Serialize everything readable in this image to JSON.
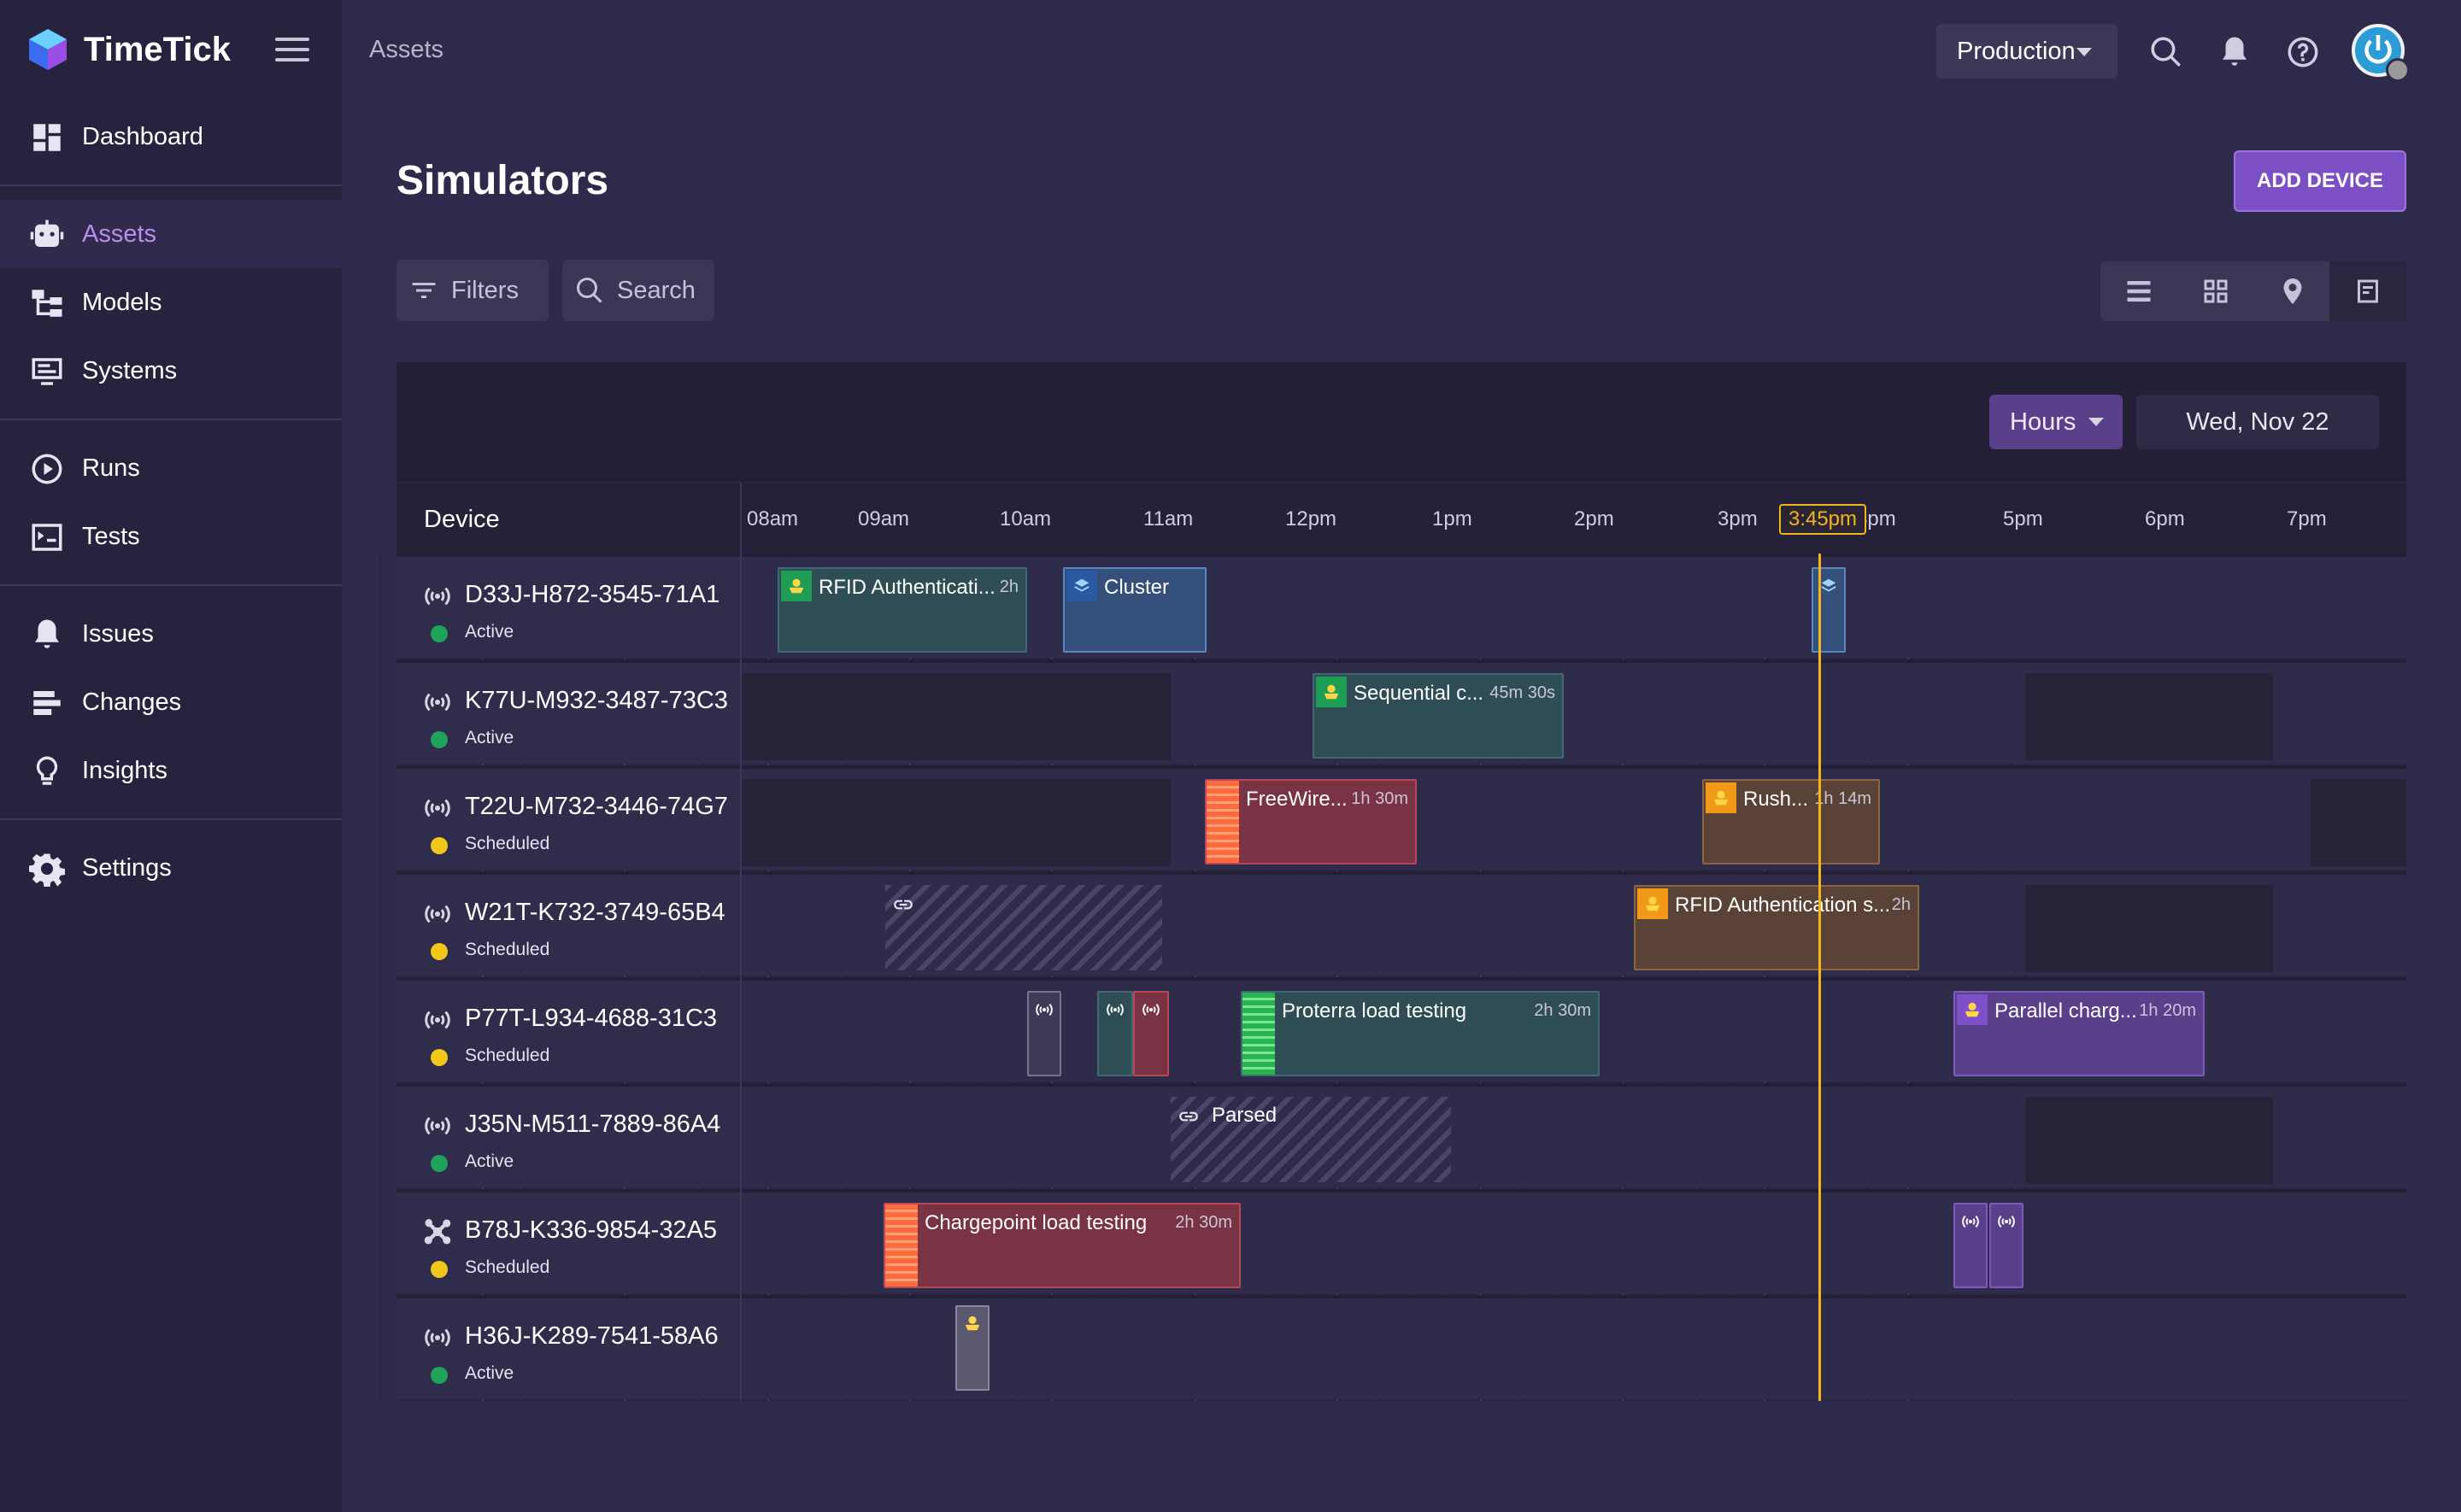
{
  "app": {
    "name": "TimeTick",
    "breadcrumb": "Assets"
  },
  "sidebar": {
    "items": [
      {
        "label": "Dashboard",
        "icon": "dashboard-icon",
        "active": false
      },
      {
        "label": "Assets",
        "icon": "robot-icon",
        "active": true
      },
      {
        "label": "Models",
        "icon": "hierarchy-icon",
        "active": false
      },
      {
        "label": "Systems",
        "icon": "monitor-icon",
        "active": false
      },
      {
        "label": "Runs",
        "icon": "play-circle-icon",
        "active": false
      },
      {
        "label": "Tests",
        "icon": "terminal-icon",
        "active": false
      },
      {
        "label": "Issues",
        "icon": "bell-icon",
        "active": false
      },
      {
        "label": "Changes",
        "icon": "bars-icon",
        "active": false
      },
      {
        "label": "Insights",
        "icon": "lightbulb-icon",
        "active": false
      },
      {
        "label": "Settings",
        "icon": "gear-icon",
        "active": false
      }
    ]
  },
  "topbar": {
    "environment": "Production"
  },
  "page": {
    "title": "Simulators",
    "add_button": "ADD DEVICE",
    "filters_label": "Filters",
    "search_placeholder": "Search"
  },
  "timeline": {
    "unit": "Hours",
    "date": "Wed, Nov 22",
    "device_header": "Device",
    "now_label": "3:45pm",
    "hours": [
      "08am",
      "09am",
      "10am",
      "11am",
      "12pm",
      "1pm",
      "2pm",
      "3pm",
      "4pm",
      "5pm",
      "6pm",
      "7pm"
    ]
  },
  "devices": [
    {
      "name": "D33J-H872-3545-71A1",
      "status": "Active"
    },
    {
      "name": "K77U-M932-3487-73C3",
      "status": "Active"
    },
    {
      "name": "T22U-M732-3446-74G7",
      "status": "Scheduled"
    },
    {
      "name": "W21T-K732-3749-65B4",
      "status": "Scheduled"
    },
    {
      "name": "P77T-L934-4688-31C3",
      "status": "Scheduled"
    },
    {
      "name": "J35N-M511-7889-86A4",
      "status": "Active"
    },
    {
      "name": "B78J-K336-9854-32A5",
      "status": "Scheduled"
    },
    {
      "name": "H36J-K289-7541-58A6",
      "status": "Active"
    }
  ],
  "events": {
    "e1": {
      "title": "RFID Authenticati...",
      "duration": "2h"
    },
    "e2": {
      "title": "Cluster"
    },
    "e3": {
      "title": "Sequential c...",
      "duration": "45m 30s"
    },
    "e4": {
      "title": "FreeWire...",
      "duration": "1h 30m"
    },
    "e5": {
      "title": "Rush...",
      "duration": "1h 14m"
    },
    "e6": {
      "title": "RFID Authentication s...",
      "duration": "2h"
    },
    "e7": {
      "title": "Proterra load testing",
      "duration": "2h 30m"
    },
    "e8": {
      "title": "Parallel charg...",
      "duration": "1h 20m"
    },
    "e9": {
      "title": "Parsed"
    },
    "e10": {
      "title": "Chargepoint load testing",
      "duration": "2h 30m"
    }
  },
  "colors": {
    "accent": "#7c4fc4",
    "active": "#1fa35a",
    "scheduled": "#f2c61b",
    "now": "#f2b51b"
  }
}
